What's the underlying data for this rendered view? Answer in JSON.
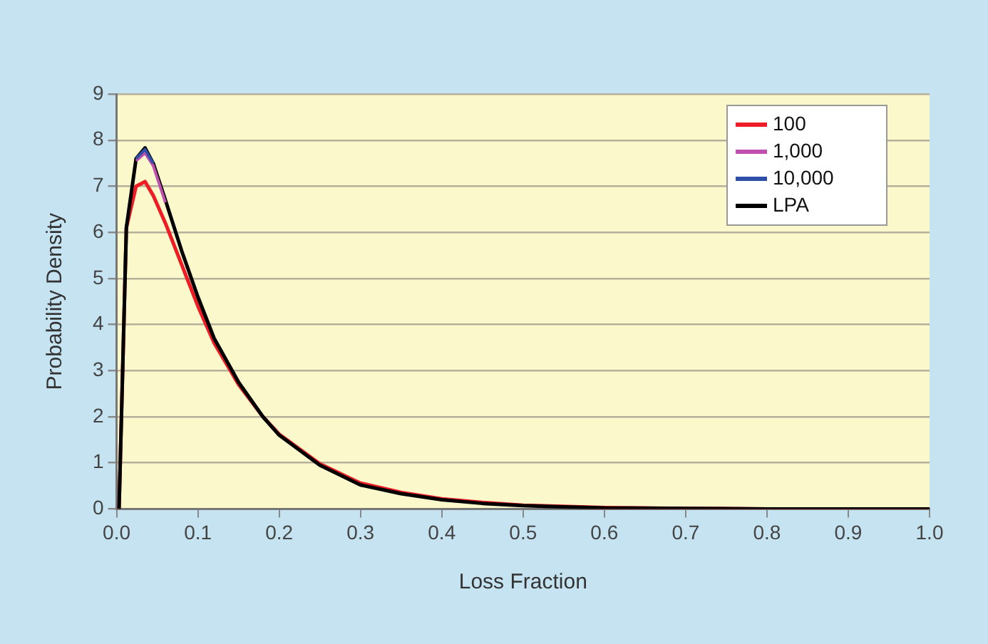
{
  "chart_data": {
    "type": "line",
    "xlabel": "Loss Fraction",
    "ylabel": "Probability Density",
    "xlim": [
      0,
      1
    ],
    "xticks": [
      {
        "value": 0,
        "label": "0.0"
      },
      0.1,
      0.2,
      0.3,
      0.4,
      0.5,
      0.6,
      0.7,
      0.8,
      0.9,
      {
        "value": 1,
        "label": "1.0"
      }
    ],
    "ylim": [
      0,
      9
    ],
    "yticks": [
      0,
      1,
      2,
      3,
      4,
      5,
      6,
      7,
      8,
      9
    ],
    "grid": "y",
    "legend": "top right",
    "marker": "none",
    "line_style": "solid",
    "x": [
      0.003,
      0.012,
      0.024,
      0.035,
      0.045,
      0.06,
      0.08,
      0.1,
      0.12,
      0.15,
      0.18,
      0.2,
      0.25,
      0.3,
      0.35,
      0.4,
      0.45,
      0.5,
      0.6,
      0.7,
      0.8,
      1.0
    ],
    "series": [
      {
        "name": "100",
        "color": "#ee1c24",
        "values": [
          0,
          6.1,
          7.0,
          7.1,
          6.8,
          6.2,
          5.3,
          4.4,
          3.6,
          2.7,
          2.0,
          1.62,
          0.98,
          0.56,
          0.36,
          0.22,
          0.14,
          0.08,
          0.03,
          0.01,
          0,
          0
        ]
      },
      {
        "name": "1,000",
        "color": "#c050b0",
        "values": [
          null,
          null,
          7.55,
          7.72,
          7.45,
          6.65,
          null,
          null,
          null,
          null,
          null,
          null,
          null,
          null,
          null,
          null,
          null,
          null,
          null,
          null,
          null,
          null
        ]
      },
      {
        "name": "10,000",
        "color": "#2e4fa8",
        "values": [
          null,
          null,
          7.6,
          7.8,
          7.5,
          null,
          null,
          null,
          null,
          null,
          null,
          null,
          null,
          null,
          null,
          null,
          null,
          null,
          null,
          null,
          null,
          null
        ]
      },
      {
        "name": "LPA",
        "color": "#000000",
        "values": [
          0,
          6.1,
          7.6,
          7.83,
          7.5,
          6.7,
          5.6,
          4.6,
          3.7,
          2.75,
          2.0,
          1.6,
          0.95,
          0.52,
          0.33,
          0.2,
          0.12,
          0.07,
          0.02,
          0.01,
          0,
          0
        ]
      }
    ]
  }
}
